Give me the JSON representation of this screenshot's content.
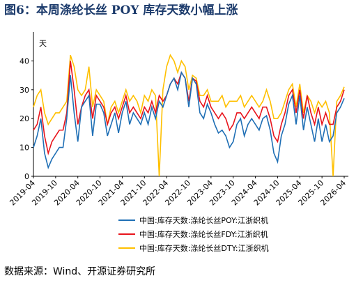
{
  "chart_data": {
    "type": "line",
    "title": "图6：本周涤纶长丝 POY 库存天数小幅上涨",
    "y_unit": "天",
    "source": "数据来源：Wind、开源证券研究所",
    "x": [
      "2019-04",
      "2019-05",
      "2019-06",
      "2019-07",
      "2019-08",
      "2019-09",
      "2019-10",
      "2019-11",
      "2019-12",
      "2020-01",
      "2020-02",
      "2020-03",
      "2020-04",
      "2020-05",
      "2020-06",
      "2020-07",
      "2020-08",
      "2020-09",
      "2020-10",
      "2020-11",
      "2020-12",
      "2021-01",
      "2021-02",
      "2021-03",
      "2021-04",
      "2021-05",
      "2021-06",
      "2021-07",
      "2021-08",
      "2021-09",
      "2021-10",
      "2021-11",
      "2021-12",
      "2022-01",
      "2022-02",
      "2022-03",
      "2022-04",
      "2022-05",
      "2022-06",
      "2022-07",
      "2022-08",
      "2022-09",
      "2022-10",
      "2022-11",
      "2022-12",
      "2023-01",
      "2023-02",
      "2023-03",
      "2023-04",
      "2023-05",
      "2023-06",
      "2023-07",
      "2023-08",
      "2023-09",
      "2023-10",
      "2023-11",
      "2023-12",
      "2024-01",
      "2024-02",
      "2024-03",
      "2024-04",
      "2024-05",
      "2024-06",
      "2024-07",
      "2024-08",
      "2024-09",
      "2024-10",
      "2024-11",
      "2024-12",
      "2025-01",
      "2025-02",
      "2025-03",
      "2025-04",
      "2025-05",
      "2025-06",
      "2025-07",
      "2025-08",
      "2025-09",
      "2025-10",
      "2025-11",
      "2025-12",
      "2026-01",
      "2026-02",
      "2026-03",
      "2026-04"
    ],
    "xticks": [
      "2019-04",
      "2019-10",
      "2020-04",
      "2020-10",
      "2021-04",
      "2021-10",
      "2022-04",
      "2022-10",
      "2023-04",
      "2023-10",
      "2024-04",
      "2024-10",
      "2025-04",
      "2025-10",
      "2026-04"
    ],
    "ylim": [
      0,
      50
    ],
    "yticks": [
      0,
      10,
      20,
      30,
      40
    ],
    "series": [
      {
        "name": "中国:库存天数:涤纶长丝POY:江浙织机",
        "color": "#1f6fb5",
        "values": [
          10,
          14,
          20,
          8,
          3,
          6,
          8,
          10,
          10,
          20,
          35,
          22,
          12,
          24,
          26,
          28,
          14,
          25,
          25,
          22,
          14,
          18,
          22,
          15,
          22,
          26,
          18,
          22,
          20,
          18,
          22,
          18,
          24,
          20,
          26,
          24,
          28,
          32,
          34,
          30,
          36,
          34,
          24,
          34,
          32,
          22,
          20,
          25,
          22,
          18,
          15,
          16,
          14,
          10,
          12,
          18,
          20,
          14,
          18,
          20,
          18,
          16,
          20,
          21,
          16,
          8,
          5,
          14,
          18,
          25,
          28,
          18,
          28,
          16,
          24,
          18,
          12,
          20,
          12,
          18,
          12,
          14,
          22,
          24,
          27
        ]
      },
      {
        "name": "中国:库存天数:涤纶长丝FDY:江浙织机",
        "color": "#e8141c",
        "values": [
          16,
          18,
          24,
          14,
          8,
          12,
          14,
          16,
          16,
          22,
          40,
          30,
          18,
          24,
          28,
          30,
          20,
          28,
          26,
          24,
          18,
          22,
          24,
          20,
          24,
          28,
          22,
          24,
          22,
          20,
          24,
          22,
          26,
          22,
          28,
          26,
          28,
          32,
          34,
          32,
          36,
          34,
          26,
          34,
          33,
          26,
          24,
          28,
          24,
          22,
          20,
          22,
          20,
          16,
          18,
          22,
          22,
          20,
          22,
          24,
          22,
          20,
          24,
          24,
          20,
          14,
          12,
          18,
          22,
          28,
          30,
          22,
          30,
          20,
          28,
          22,
          18,
          24,
          18,
          22,
          18,
          18,
          24,
          26,
          30
        ]
      },
      {
        "name": "中国:库存天数:涤纶长丝DTY:江浙织机",
        "color": "#ffc000",
        "values": [
          24,
          28,
          30,
          22,
          18,
          20,
          22,
          22,
          24,
          26,
          42,
          38,
          30,
          28,
          30,
          38,
          24,
          30,
          28,
          26,
          18,
          24,
          26,
          22,
          26,
          30,
          26,
          28,
          26,
          22,
          28,
          26,
          30,
          28,
          0,
          30,
          38,
          42,
          40,
          36,
          40,
          38,
          30,
          35,
          34,
          28,
          28,
          30,
          26,
          26,
          26,
          28,
          24,
          26,
          26,
          26,
          28,
          24,
          26,
          28,
          26,
          24,
          26,
          30,
          26,
          20,
          20,
          22,
          26,
          30,
          32,
          24,
          32,
          22,
          28,
          26,
          22,
          26,
          24,
          26,
          22,
          0,
          26,
          28,
          31
        ]
      }
    ]
  }
}
